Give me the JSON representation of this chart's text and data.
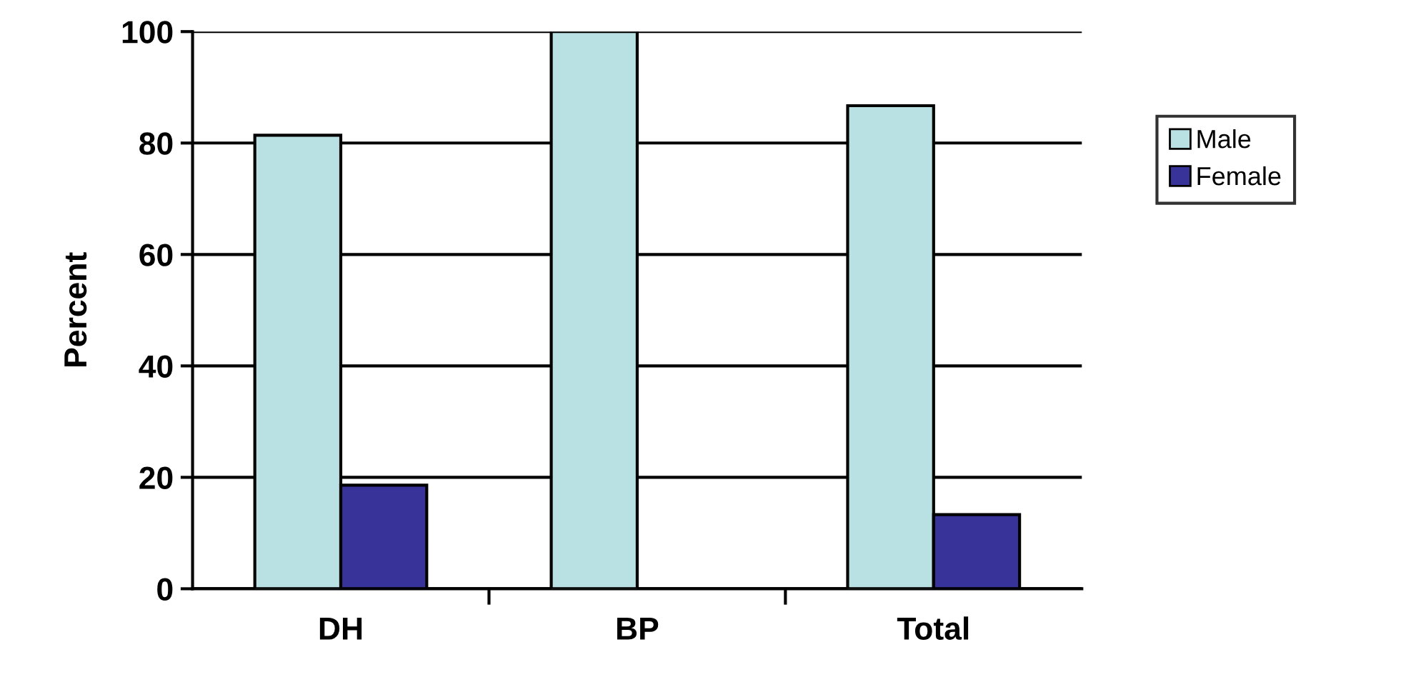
{
  "chart_data": {
    "type": "bar",
    "ylabel": "Percent",
    "categories": [
      "DH",
      "BP",
      "Total"
    ],
    "series": [
      {
        "name": "Male",
        "color": "#b9e0e2",
        "values": [
          81.4,
          100,
          86.7
        ]
      },
      {
        "name": "Female",
        "color": "#373399",
        "values": [
          18.6,
          null,
          13.3
        ]
      }
    ],
    "ylim": [
      0,
      100
    ],
    "yticks": [
      0,
      20,
      40,
      60,
      80,
      100
    ],
    "grid": "y",
    "legend": "right"
  }
}
